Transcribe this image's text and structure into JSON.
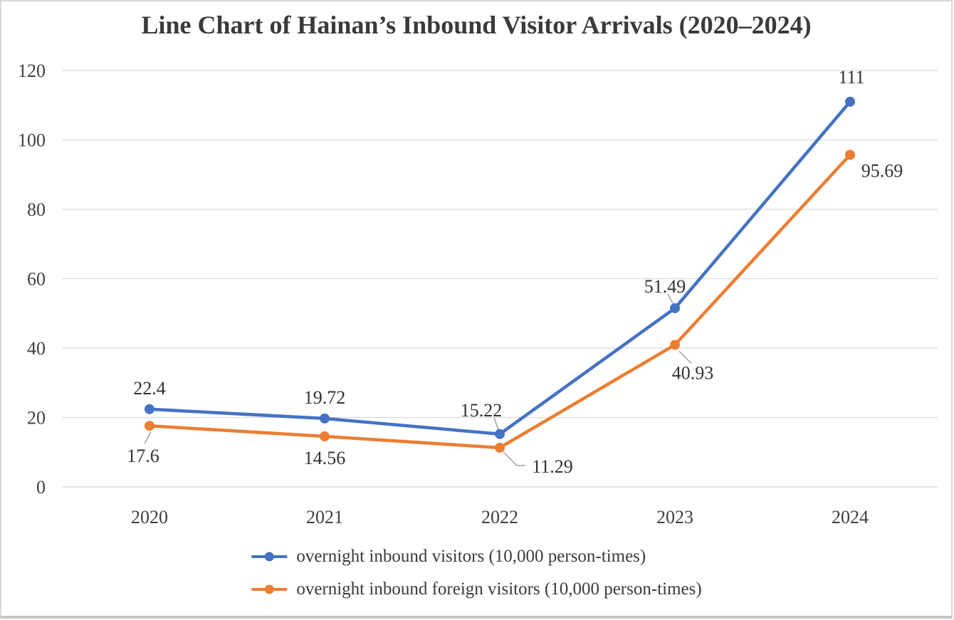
{
  "chart_data": {
    "type": "line",
    "title": "Line Chart of Hainan’s Inbound Visitor Arrivals (2020–2024)",
    "categories": [
      "2020",
      "2021",
      "2022",
      "2023",
      "2024"
    ],
    "series": [
      {
        "name": "overnight inbound visitors (10,000 person-times)",
        "color": "#4472C4",
        "values": [
          22.4,
          19.72,
          15.22,
          51.49,
          111
        ]
      },
      {
        "name": "overnight inbound foreign visitors (10,000 person-times)",
        "color": "#ED7D31",
        "values": [
          17.6,
          14.56,
          11.29,
          40.93,
          95.69
        ]
      }
    ],
    "y_axis": {
      "min": 0,
      "max": 120,
      "step": 20,
      "ticks": [
        "0",
        "20",
        "40",
        "60",
        "80",
        "100",
        "120"
      ]
    },
    "xlabel": "",
    "ylabel": "",
    "grid": true,
    "legend_position": "bottom",
    "data_labels_shown": true,
    "colors": {
      "gridline": "#dcdcdc",
      "axis_line": "#d0d0d0",
      "tick_text": "#404040",
      "data_label_text": "#333333",
      "leader_line": "#a6a6a6",
      "title_text": "#3a3a3a",
      "background": "#ffffff"
    }
  }
}
